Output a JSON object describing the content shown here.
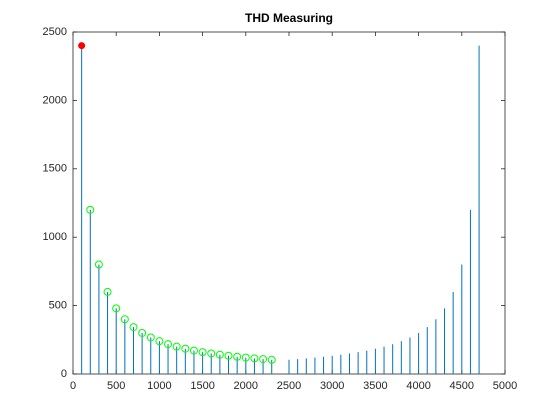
{
  "chart_data": {
    "type": "stem",
    "title": "THD Measuring",
    "series": [
      {
        "color": "#0072bd",
        "x": [
          100,
          200,
          300,
          400,
          500,
          600,
          700,
          800,
          900,
          1000,
          1100,
          1200,
          1300,
          1400,
          1500,
          1600,
          1700,
          1800,
          1900,
          2000,
          2100,
          2200,
          2300,
          2500,
          2600,
          2700,
          2800,
          2900,
          3000,
          3100,
          3200,
          3300,
          3400,
          3500,
          3600,
          3700,
          3800,
          3900,
          4000,
          4100,
          4200,
          4300,
          4400,
          4500,
          4600,
          4700
        ],
        "values": [
          2400,
          1200,
          800,
          600,
          480,
          400,
          343,
          300,
          267,
          240,
          218,
          200,
          185,
          171,
          160,
          150,
          141,
          133,
          126,
          120,
          114,
          109,
          104,
          104,
          109,
          114,
          120,
          126,
          133,
          141,
          150,
          160,
          171,
          185,
          200,
          218,
          240,
          267,
          300,
          343,
          400,
          480,
          600,
          800,
          1200,
          2400
        ]
      }
    ],
    "markers": [
      {
        "color": "#ff0000",
        "filled": true,
        "x": [
          100
        ],
        "values": [
          2400
        ]
      },
      {
        "color": "#00ff00",
        "filled": false,
        "x": [
          200,
          300,
          400,
          500,
          600,
          700,
          800,
          900,
          1000,
          1100,
          1200,
          1300,
          1400,
          1500,
          1600,
          1700,
          1800,
          1900,
          2000,
          2100,
          2200,
          2300
        ],
        "values": [
          1200,
          800,
          600,
          480,
          400,
          343,
          300,
          267,
          240,
          218,
          200,
          185,
          171,
          160,
          150,
          141,
          133,
          126,
          120,
          114,
          109,
          104
        ]
      }
    ],
    "xlim": [
      0,
      5000
    ],
    "xticks": [
      0,
      500,
      1000,
      1500,
      2000,
      2500,
      3000,
      3500,
      4000,
      4500,
      5000
    ],
    "ylim": [
      0,
      2500
    ],
    "yticks": [
      0,
      500,
      1000,
      1500,
      2000,
      2500
    ]
  }
}
